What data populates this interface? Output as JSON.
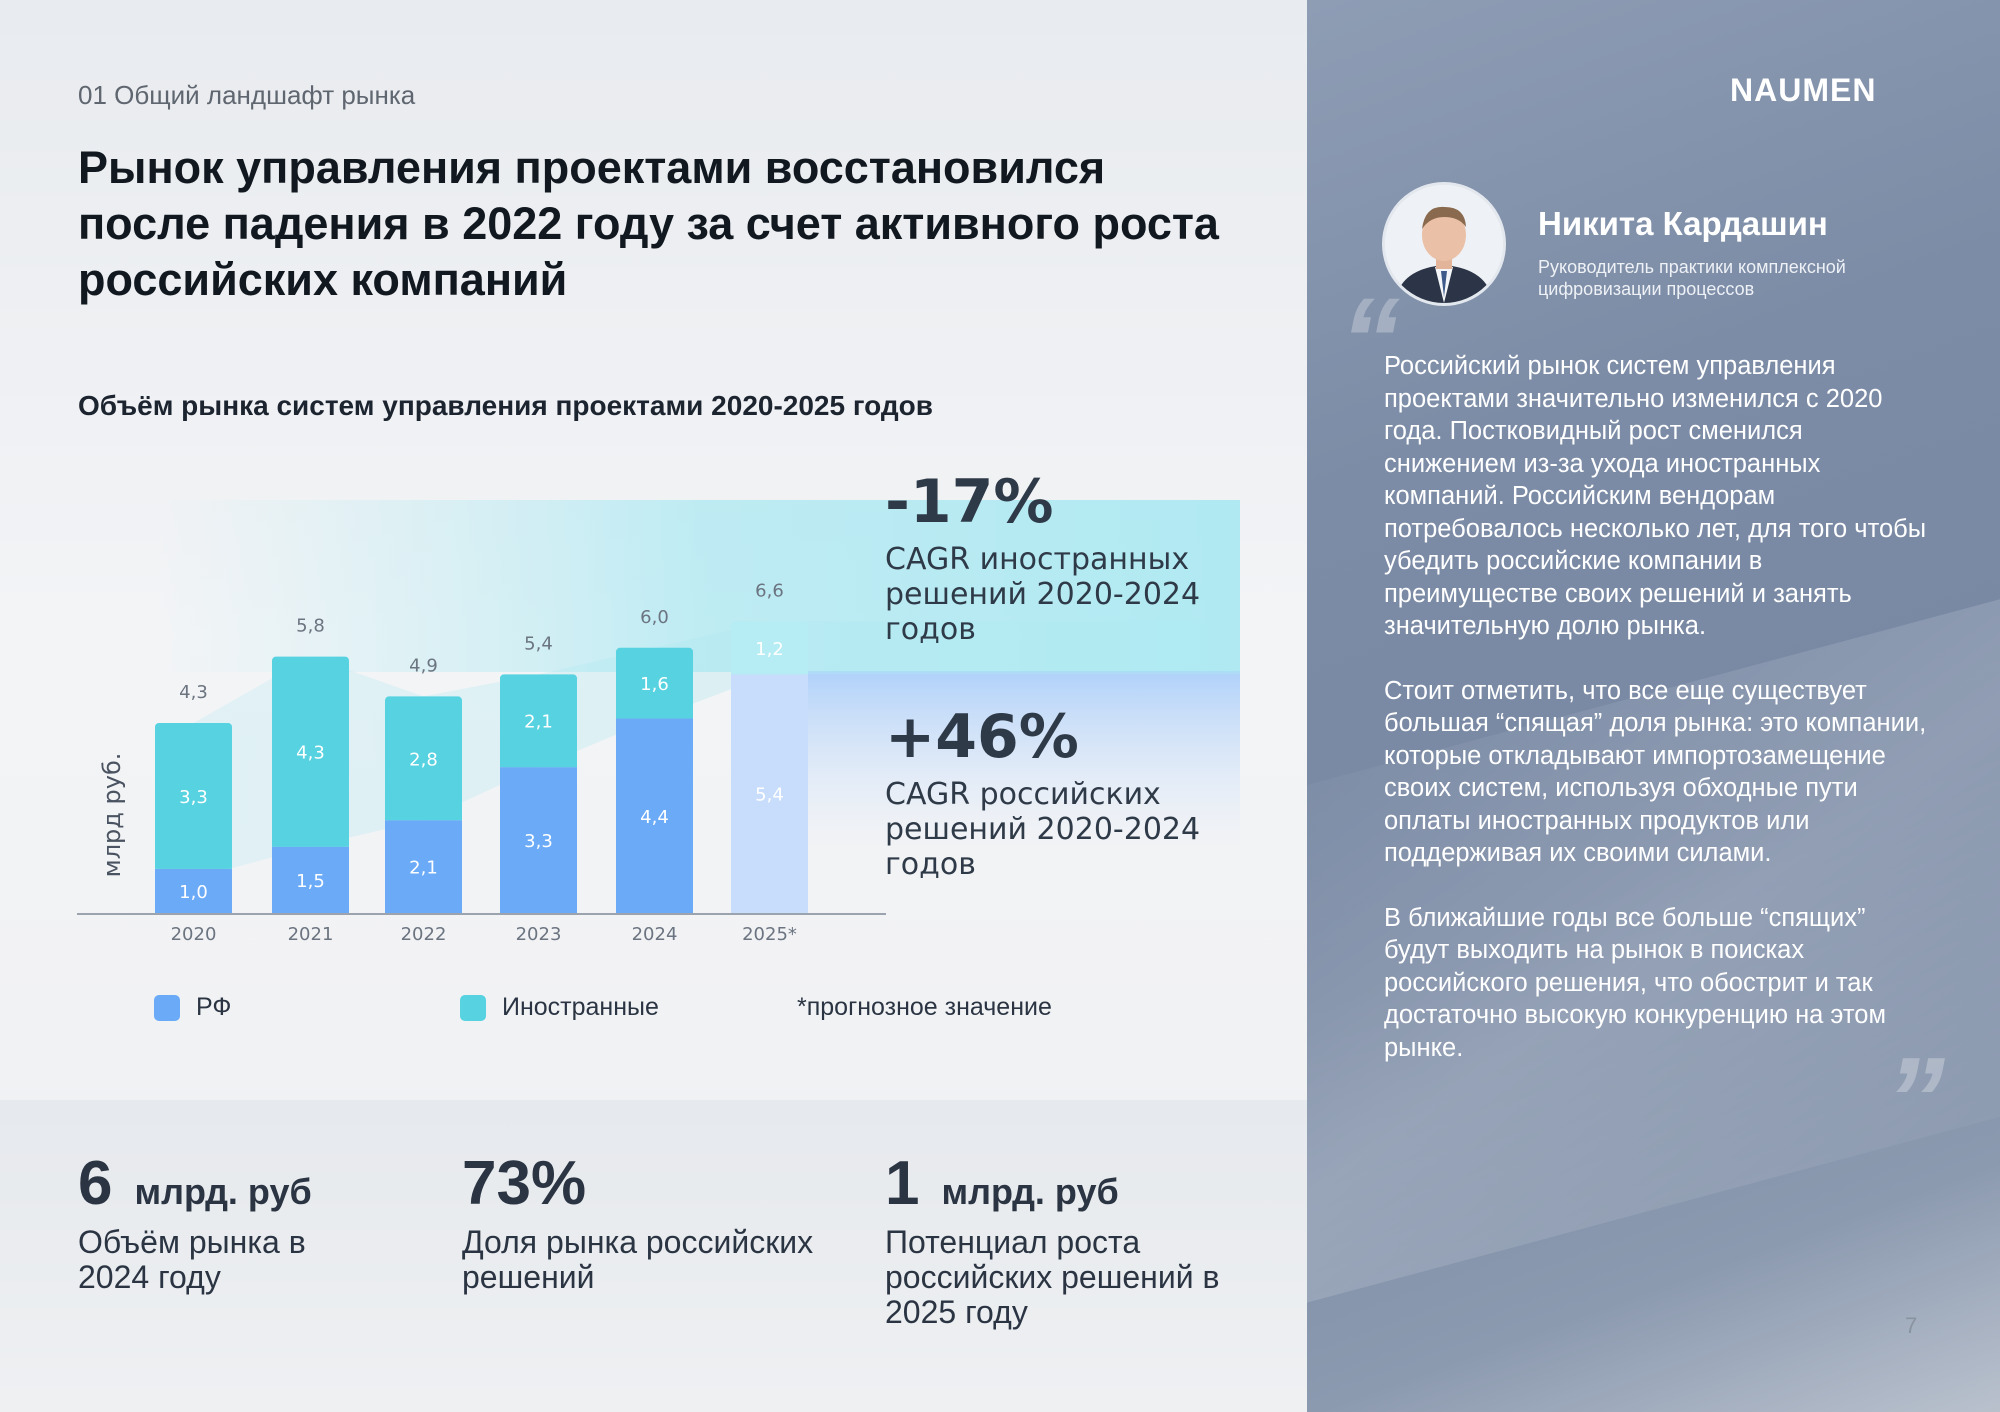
{
  "section_label": "01 Общий ландшафт рынка",
  "headline": "Рынок управления проектами восстановился после падения в 2022 году за счет активного роста российских компаний",
  "logo": "NAUMEN",
  "chart_data": {
    "type": "bar",
    "stacked": true,
    "title": "Объём рынка систем управления проектами 2020-2025 годов",
    "ylabel": "млрд руб.",
    "categories": [
      "2020",
      "2021",
      "2022",
      "2023",
      "2024",
      "2025*"
    ],
    "series": [
      {
        "name": "РФ",
        "values": [
          1.0,
          1.5,
          2.1,
          3.3,
          4.4,
          5.4
        ],
        "labels": [
          "1,0",
          "1,5",
          "2,1",
          "3,3",
          "4,4",
          "5,4"
        ],
        "color": "#6aaaf7"
      },
      {
        "name": "Иностранные",
        "values": [
          3.3,
          4.3,
          2.8,
          2.1,
          1.6,
          1.2
        ],
        "labels": [
          "3,3",
          "4,3",
          "2,8",
          "2,1",
          "1,6",
          "1,2"
        ],
        "color": "#57d2e0"
      }
    ],
    "totals": [
      "4,3",
      "5,8",
      "4,9",
      "5,4",
      "6,0",
      "6,6"
    ],
    "forecast_index": 5,
    "footnote": "*прогнозное значение",
    "annotations": [
      {
        "value": "-17%",
        "label": "CAGR иностранных решений 2020-2024 годов"
      },
      {
        "value": "+46%",
        "label": "CAGR российских решений 2020-2024 годов"
      }
    ]
  },
  "stats": [
    {
      "value": "6",
      "unit": "млрд. руб",
      "label": "Объём рынка в 2024 году"
    },
    {
      "value": "73%",
      "unit": "",
      "label": "Доля рынка российских решений"
    },
    {
      "value": "1",
      "unit": "млрд. руб",
      "label": "Потенциал роста российских решений в 2025 году"
    }
  ],
  "person": {
    "name": "Никита Кардашин",
    "role": "Руководитель практики комплексной цифровизации процессов"
  },
  "quote": {
    "open_mark": "“",
    "close_mark": "”",
    "paragraphs": [
      "Российский рынок систем управления проектами значительно изменился с 2020 года. Постковидный рост сменился снижением из-за ухода иностранных компаний. Российским вендорам потребовалось несколько лет, для того чтобы убедить российские компании в преимуществе своих решений и занять значительную долю рынка.",
      "Стоит отметить, что все еще существует большая “спящая” доля рынка: это компании, которые  откладывают импортозамещение своих систем, используя обходные пути оплаты иностранных продуктов или поддерживая их своими силами.",
      "В ближайшие годы все больше “спящих” будут выходить на рынок в поисках российского решения, что обострит и так достаточно высокую конкуренцию на этом рынке."
    ]
  },
  "page_number": "7",
  "colors": {
    "rf": "#6aaaf7",
    "foreign": "#57d2e0",
    "panel": "#7d8da7"
  }
}
